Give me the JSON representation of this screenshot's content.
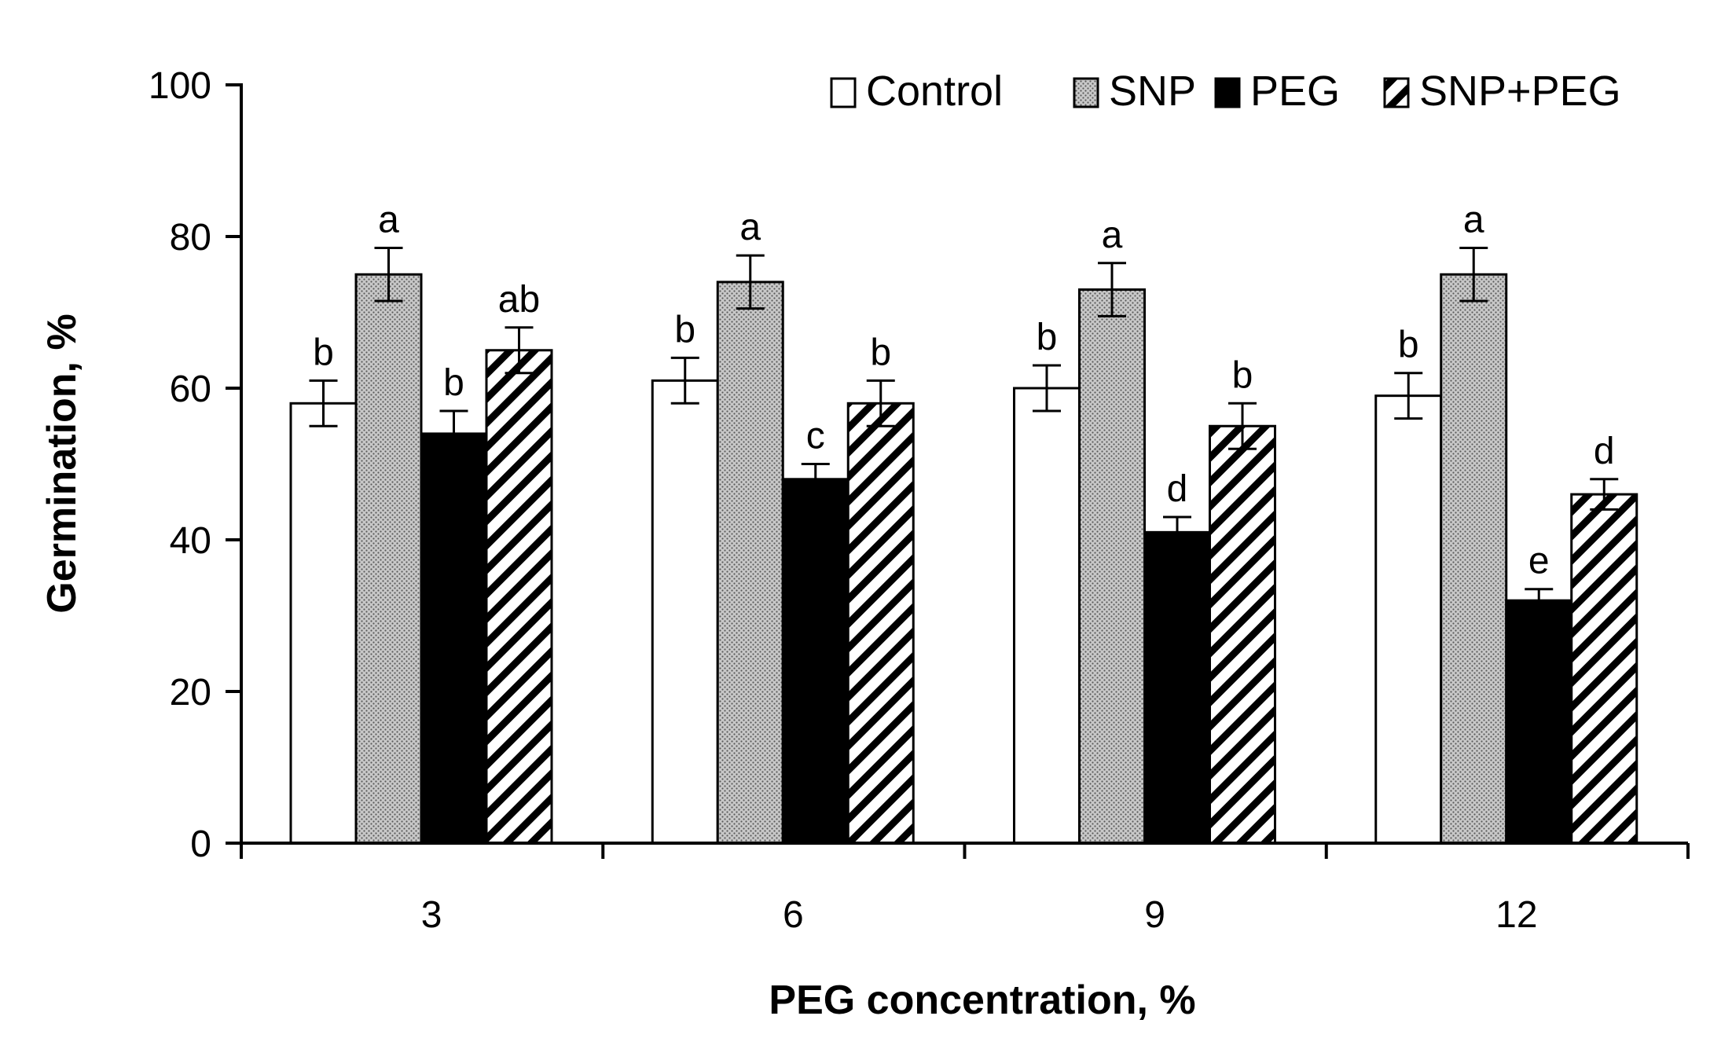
{
  "chart_data": {
    "type": "bar",
    "title": "",
    "xlabel": "PEG concentration, %",
    "ylabel": "Germination, %",
    "ylim": [
      0,
      100
    ],
    "yticks": [
      "0",
      "20",
      "40",
      "60",
      "80",
      "100"
    ],
    "categories": [
      "3",
      "6",
      "9",
      "12"
    ],
    "legend_position": "top-right",
    "series": [
      {
        "name": "Control",
        "values": [
          58,
          61,
          60,
          59
        ],
        "errors": [
          3,
          3,
          3,
          3
        ],
        "letters": [
          "b",
          "b",
          "b",
          "b"
        ],
        "pattern": "white"
      },
      {
        "name": "SNP",
        "values": [
          75,
          74,
          73,
          75
        ],
        "errors": [
          3.5,
          3.5,
          3.5,
          3.5
        ],
        "letters": [
          "a",
          "a",
          "a",
          "a"
        ],
        "pattern": "dots"
      },
      {
        "name": "PEG",
        "values": [
          54,
          48,
          41,
          32
        ],
        "errors": [
          3,
          2,
          2,
          1.5
        ],
        "letters": [
          "b",
          "c",
          "d",
          "e"
        ],
        "pattern": "black"
      },
      {
        "name": "SNP+PEG",
        "values": [
          65,
          58,
          55,
          46
        ],
        "errors": [
          3,
          3,
          3,
          2
        ],
        "letters": [
          "ab",
          "b",
          "b",
          "d"
        ],
        "pattern": "hatch"
      }
    ]
  }
}
